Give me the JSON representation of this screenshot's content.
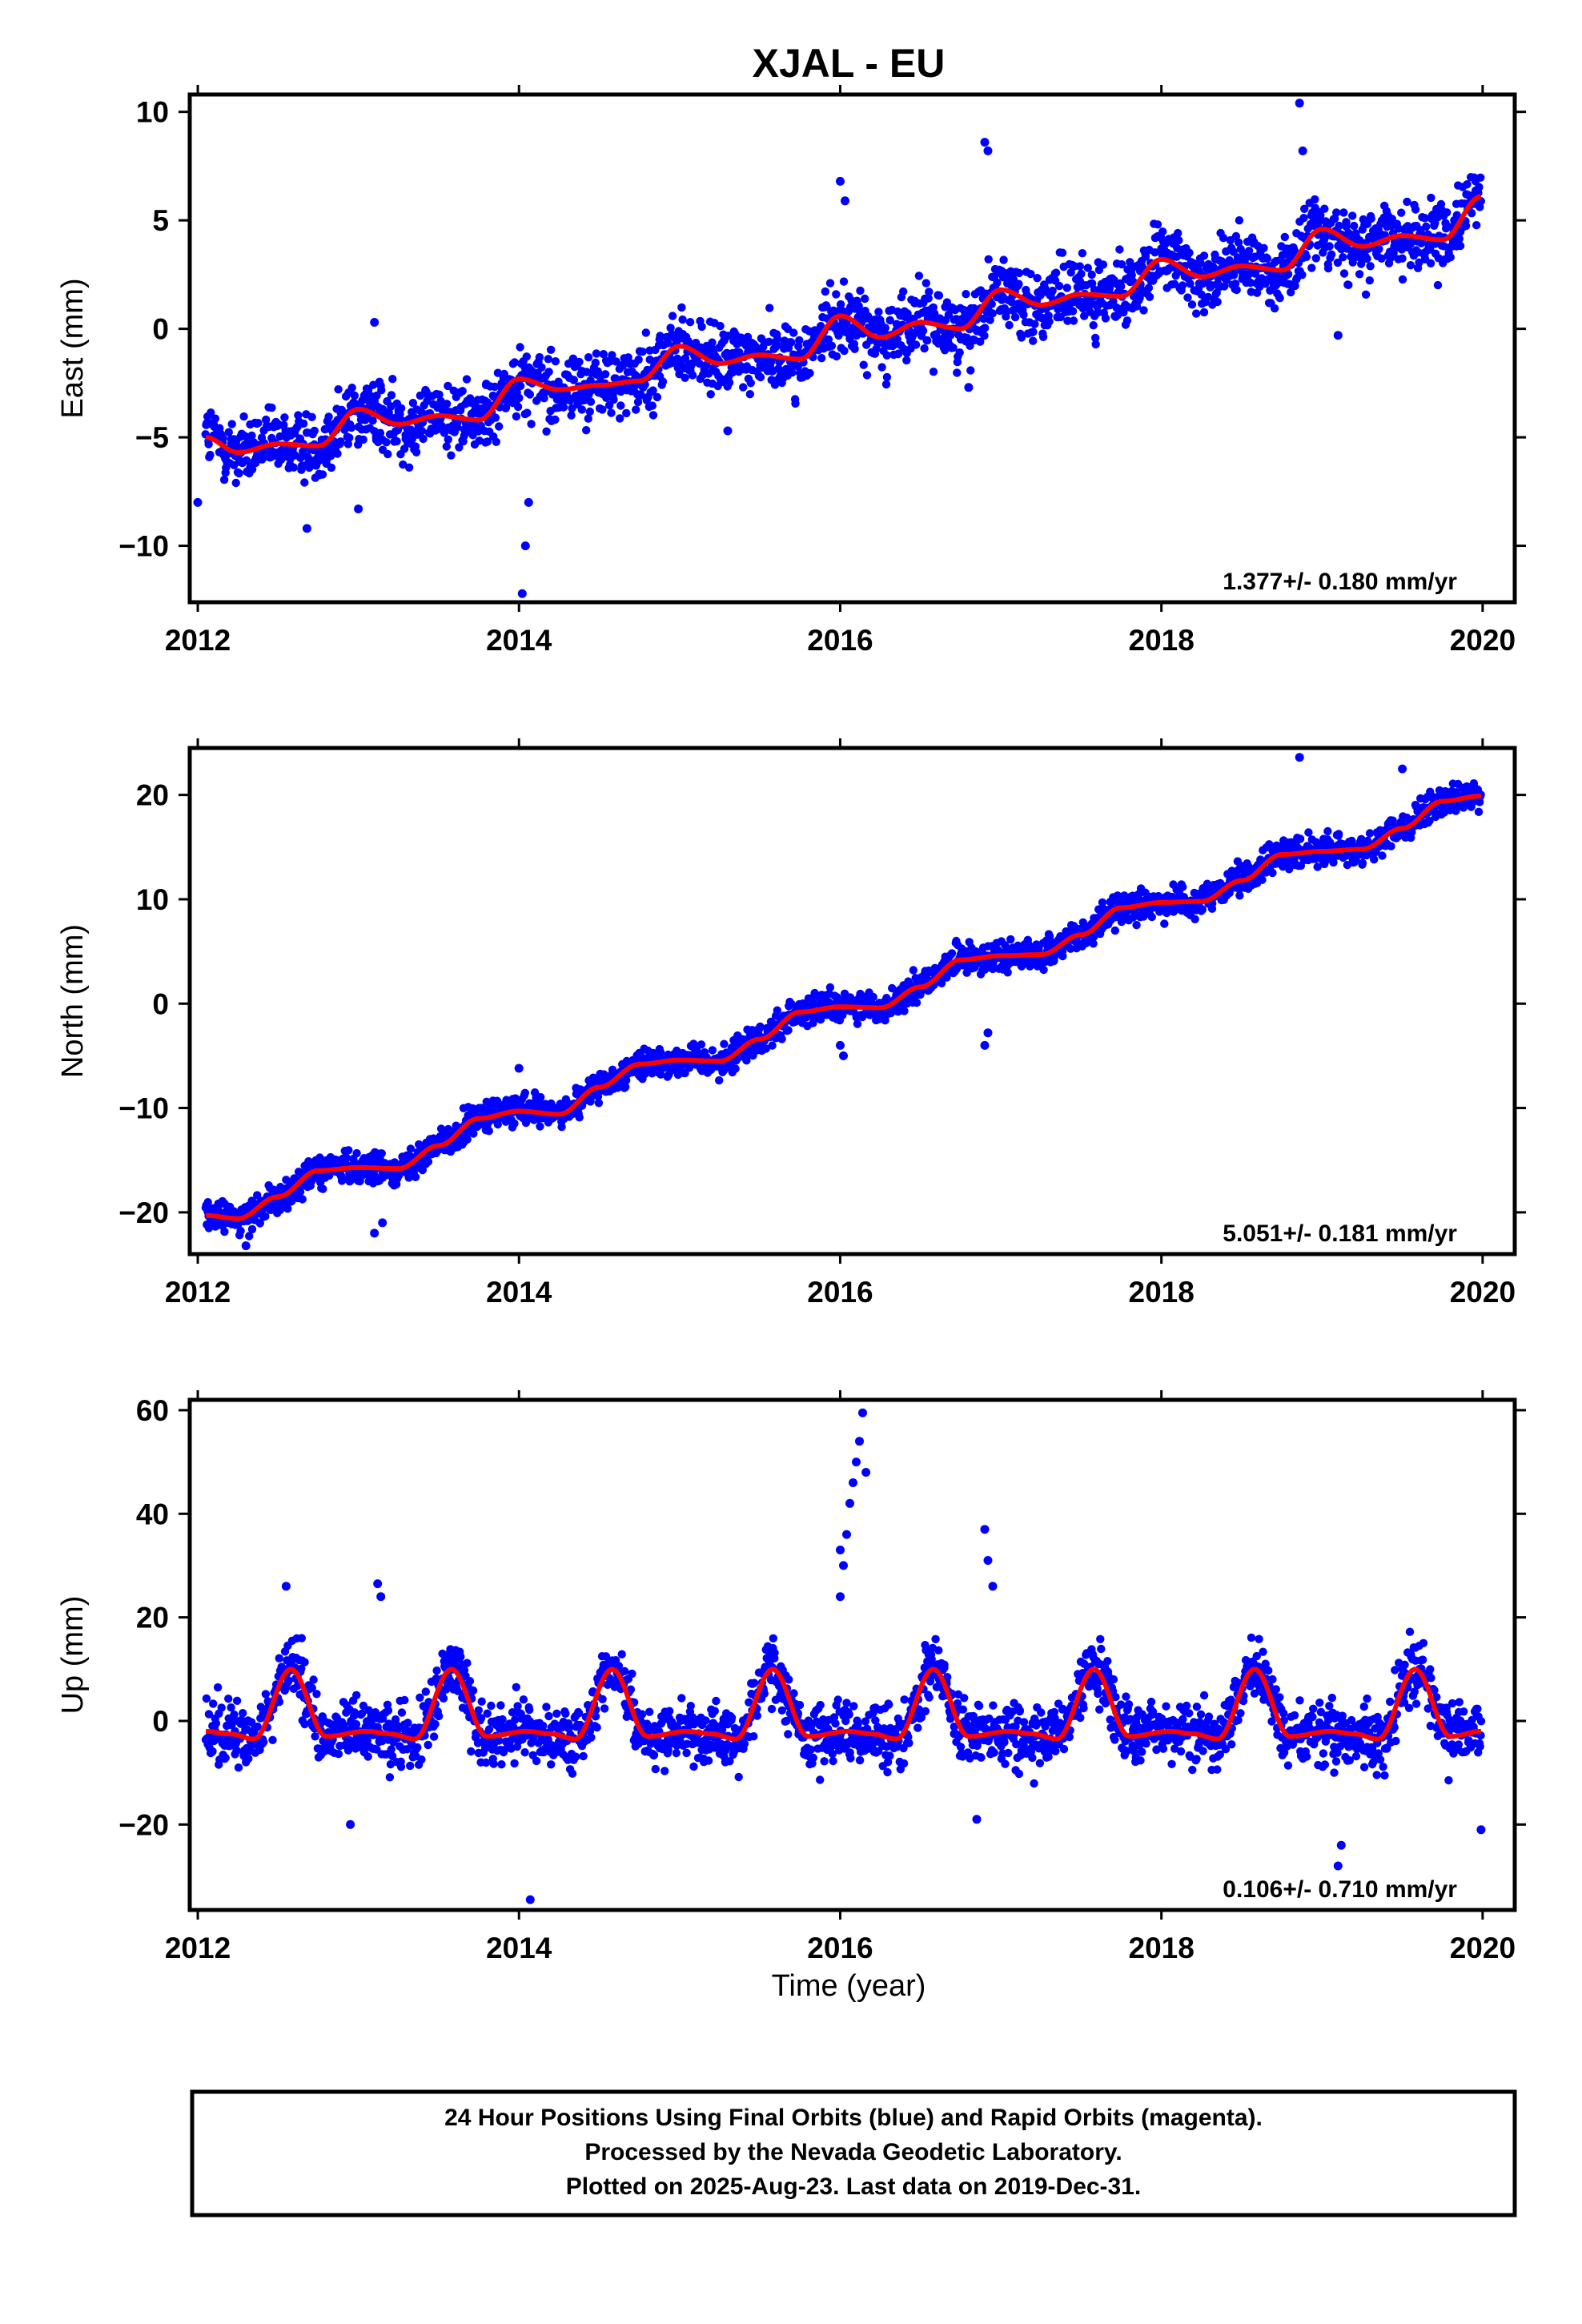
{
  "chart_data": [
    {
      "type": "scatter",
      "title": "XJAL - EU",
      "ylabel": "East (mm)",
      "xlabel": "",
      "xlim": [
        2011.95,
        2020.2
      ],
      "ylim": [
        -12.6,
        10.8
      ],
      "x_ticks": [
        2012,
        2014,
        2016,
        2018,
        2020
      ],
      "y_ticks": [
        -10,
        -5,
        0,
        5,
        10
      ],
      "y_tick_labels": [
        "−10",
        "−5",
        "0",
        "5",
        "10"
      ],
      "rate_label": "1.377+/- 0.180 mm/yr",
      "grid": false,
      "series": [
        {
          "kind": "points",
          "color": "#0000ff",
          "x": [
            2012.05,
            2012.25,
            2012.5,
            2012.75,
            2013.0,
            2013.25,
            2013.5,
            2013.75,
            2014.0,
            2014.25,
            2014.5,
            2014.75,
            2015.0,
            2015.25,
            2015.5,
            2015.75,
            2016.0,
            2016.25,
            2016.5,
            2016.75,
            2017.0,
            2017.25,
            2017.5,
            2017.75,
            2018.0,
            2018.25,
            2018.5,
            2018.75,
            2019.0,
            2019.25,
            2019.5,
            2019.75,
            2019.99
          ],
          "y": [
            -5.0,
            -5.7,
            -5.3,
            -5.4,
            -3.7,
            -4.4,
            -4.0,
            -4.2,
            -2.3,
            -2.8,
            -2.6,
            -2.4,
            -0.8,
            -1.6,
            -1.2,
            -1.4,
            0.6,
            -0.4,
            0.3,
            0.0,
            1.8,
            1.1,
            1.6,
            1.5,
            3.2,
            2.4,
            2.9,
            2.7,
            4.6,
            3.8,
            4.3,
            4.1,
            6.1
          ]
        },
        {
          "kind": "outliers",
          "color": "#0000ff",
          "x": [
            2014.02,
            2014.04,
            2014.06,
            2016.0,
            2016.03,
            2016.9,
            2016.92,
            2018.86,
            2018.88,
            2012.0,
            2012.68,
            2013.0,
            2013.1,
            2015.3,
            2016.8,
            2019.1
          ],
          "y": [
            -12.2,
            -10.0,
            -8.0,
            6.8,
            5.9,
            8.6,
            8.2,
            10.4,
            8.2,
            -8.0,
            -9.2,
            -8.3,
            0.3,
            -4.7,
            -2.7,
            -0.3
          ]
        },
        {
          "kind": "model",
          "color": "#ff0000",
          "x": [
            2012.05,
            2012.25,
            2012.5,
            2012.75,
            2013.0,
            2013.25,
            2013.5,
            2013.75,
            2014.0,
            2014.25,
            2014.5,
            2014.75,
            2015.0,
            2015.25,
            2015.5,
            2015.75,
            2016.0,
            2016.25,
            2016.5,
            2016.75,
            2017.0,
            2017.25,
            2017.5,
            2017.75,
            2018.0,
            2018.25,
            2018.5,
            2018.75,
            2019.0,
            2019.25,
            2019.5,
            2019.75,
            2019.99
          ],
          "y": [
            -5.0,
            -5.7,
            -5.3,
            -5.4,
            -3.7,
            -4.4,
            -4.0,
            -4.2,
            -2.3,
            -2.8,
            -2.6,
            -2.4,
            -0.8,
            -1.6,
            -1.2,
            -1.4,
            0.6,
            -0.4,
            0.3,
            0.0,
            1.8,
            1.1,
            1.6,
            1.5,
            3.2,
            2.4,
            2.9,
            2.7,
            4.6,
            3.8,
            4.3,
            4.1,
            6.1
          ]
        }
      ]
    },
    {
      "type": "scatter",
      "title": "",
      "ylabel": "North (mm)",
      "xlabel": "",
      "xlim": [
        2011.95,
        2020.2
      ],
      "ylim": [
        -24.0,
        24.5
      ],
      "x_ticks": [
        2012,
        2014,
        2016,
        2018,
        2020
      ],
      "y_ticks": [
        -20,
        -10,
        0,
        10,
        20
      ],
      "y_tick_labels": [
        "−20",
        "−10",
        "0",
        "10",
        "20"
      ],
      "rate_label": "5.051+/- 0.181 mm/yr",
      "grid": false,
      "series": [
        {
          "kind": "points",
          "color": "#0000ff",
          "x": [
            2012.05,
            2012.25,
            2012.5,
            2012.75,
            2013.0,
            2013.25,
            2013.5,
            2013.75,
            2014.0,
            2014.25,
            2014.5,
            2014.75,
            2015.0,
            2015.25,
            2015.5,
            2015.75,
            2016.0,
            2016.25,
            2016.5,
            2016.75,
            2017.0,
            2017.25,
            2017.5,
            2017.75,
            2018.0,
            2018.25,
            2018.5,
            2018.75,
            2019.0,
            2019.25,
            2019.5,
            2019.75,
            2019.99
          ],
          "y": [
            -20.3,
            -20.6,
            -18.5,
            -16.0,
            -15.7,
            -15.8,
            -13.6,
            -11.0,
            -10.3,
            -10.6,
            -8.0,
            -5.8,
            -5.4,
            -5.5,
            -3.4,
            -0.8,
            -0.3,
            -0.4,
            1.6,
            4.2,
            4.6,
            4.7,
            6.6,
            9.2,
            9.7,
            9.8,
            11.8,
            14.3,
            14.6,
            14.8,
            16.8,
            19.4,
            19.9
          ]
        },
        {
          "kind": "outliers",
          "color": "#0000ff",
          "x": [
            2012.3,
            2013.1,
            2013.15,
            2014.0,
            2016.0,
            2016.02,
            2016.9,
            2016.92,
            2018.86,
            2019.5
          ],
          "y": [
            -23.2,
            -22.0,
            -21.0,
            -6.2,
            -4.0,
            -5.0,
            -4.0,
            -2.8,
            23.6,
            22.5
          ]
        },
        {
          "kind": "model",
          "color": "#ff0000",
          "x": [
            2012.05,
            2012.25,
            2012.5,
            2012.75,
            2013.0,
            2013.25,
            2013.5,
            2013.75,
            2014.0,
            2014.25,
            2014.5,
            2014.75,
            2015.0,
            2015.25,
            2015.5,
            2015.75,
            2016.0,
            2016.25,
            2016.5,
            2016.75,
            2017.0,
            2017.25,
            2017.5,
            2017.75,
            2018.0,
            2018.25,
            2018.5,
            2018.75,
            2019.0,
            2019.25,
            2019.5,
            2019.75,
            2019.99
          ],
          "y": [
            -20.3,
            -20.6,
            -18.5,
            -16.0,
            -15.7,
            -15.8,
            -13.6,
            -11.0,
            -10.3,
            -10.6,
            -8.0,
            -5.8,
            -5.4,
            -5.5,
            -3.4,
            -0.8,
            -0.3,
            -0.4,
            1.6,
            4.2,
            4.6,
            4.7,
            6.6,
            9.2,
            9.7,
            9.8,
            11.8,
            14.3,
            14.6,
            14.8,
            16.8,
            19.4,
            19.9
          ]
        }
      ]
    },
    {
      "type": "scatter",
      "title": "",
      "ylabel": "Up (mm)",
      "xlabel": "Time (year)",
      "xlim": [
        2011.95,
        2020.2
      ],
      "ylim": [
        -36.5,
        62.0
      ],
      "x_ticks": [
        2012,
        2014,
        2016,
        2018,
        2020
      ],
      "y_ticks": [
        -20,
        0,
        20,
        40,
        60
      ],
      "y_tick_labels": [
        "−20",
        "0",
        "20",
        "40",
        "60"
      ],
      "rate_label": "0.106+/- 0.710 mm/yr",
      "grid": false,
      "series": [
        {
          "kind": "points",
          "color": "#0000ff",
          "x": [
            2012.05,
            2012.2,
            2012.35,
            2012.58,
            2012.8,
            2013.05,
            2013.2,
            2013.35,
            2013.58,
            2013.8,
            2014.05,
            2014.2,
            2014.35,
            2014.58,
            2014.8,
            2015.05,
            2015.2,
            2015.35,
            2015.58,
            2015.8,
            2016.05,
            2016.2,
            2016.35,
            2016.58,
            2016.8,
            2017.05,
            2017.2,
            2017.35,
            2017.58,
            2017.8,
            2018.05,
            2018.2,
            2018.35,
            2018.58,
            2018.8,
            2019.05,
            2019.2,
            2019.35,
            2019.58,
            2019.8,
            2019.99
          ],
          "y": [
            -2.0,
            -2.5,
            -3.5,
            10.0,
            -3.0,
            -2.0,
            -2.5,
            -3.5,
            10.0,
            -3.0,
            -2.0,
            -2.5,
            -3.5,
            10.0,
            -3.0,
            -2.0,
            -2.5,
            -3.5,
            10.0,
            -3.0,
            -2.0,
            -2.5,
            -3.5,
            10.0,
            -3.0,
            -2.0,
            -2.5,
            -3.5,
            10.0,
            -3.0,
            -2.0,
            -2.5,
            -3.5,
            10.0,
            -3.0,
            -2.0,
            -2.5,
            -3.5,
            10.0,
            -3.0,
            -2.0
          ]
        },
        {
          "kind": "outliers",
          "color": "#0000ff",
          "x": [
            2016.0,
            2016.02,
            2016.04,
            2016.06,
            2016.08,
            2016.1,
            2016.12,
            2016.14,
            2016.0,
            2016.16,
            2016.9,
            2016.92,
            2016.95,
            2014.07,
            2012.55,
            2013.12,
            2013.14,
            2019.1,
            2019.12,
            2012.95,
            2016.85,
            2019.99
          ],
          "y": [
            24.0,
            30.0,
            36.0,
            42.0,
            46.0,
            50.0,
            54.0,
            59.5,
            33.0,
            48.0,
            37.0,
            31.0,
            26.0,
            -34.5,
            26.0,
            26.5,
            24.0,
            -28.0,
            -24.0,
            -20.0,
            -19.0,
            -21.0
          ]
        },
        {
          "kind": "model",
          "color": "#ff0000",
          "x": [
            2012.05,
            2012.2,
            2012.35,
            2012.58,
            2012.8,
            2013.05,
            2013.2,
            2013.35,
            2013.58,
            2013.8,
            2014.05,
            2014.2,
            2014.35,
            2014.58,
            2014.8,
            2015.05,
            2015.2,
            2015.35,
            2015.58,
            2015.8,
            2016.05,
            2016.2,
            2016.35,
            2016.58,
            2016.8,
            2017.05,
            2017.2,
            2017.35,
            2017.58,
            2017.8,
            2018.05,
            2018.2,
            2018.35,
            2018.58,
            2018.8,
            2019.05,
            2019.2,
            2019.35,
            2019.58,
            2019.8,
            2019.99
          ],
          "y": [
            -2.0,
            -2.5,
            -3.5,
            10.0,
            -3.0,
            -2.0,
            -2.5,
            -3.5,
            10.0,
            -3.0,
            -2.0,
            -2.5,
            -3.5,
            10.0,
            -3.0,
            -2.0,
            -2.5,
            -3.5,
            10.0,
            -3.0,
            -2.0,
            -2.5,
            -3.5,
            10.0,
            -3.0,
            -2.0,
            -2.5,
            -3.5,
            10.0,
            -3.0,
            -2.0,
            -2.5,
            -3.5,
            10.0,
            -3.0,
            -2.0,
            -2.5,
            -3.5,
            10.0,
            -3.0,
            -2.0
          ]
        }
      ]
    }
  ],
  "caption": {
    "line1": "24 Hour Positions Using Final Orbits (blue) and Rapid Orbits (magenta).",
    "line2": "Processed by the Nevada Geodetic Laboratory.",
    "line3": "Plotted on 2025-Aug-23. Last data on 2019-Dec-31."
  },
  "colors": {
    "final_orbits": "#0000ff",
    "model": "#ff0000",
    "frame": "#000000"
  }
}
